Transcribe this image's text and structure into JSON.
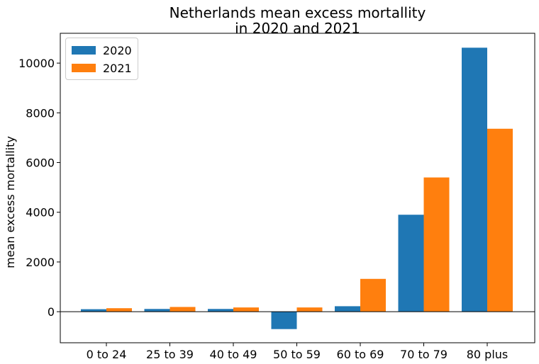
{
  "chart_data": {
    "type": "bar",
    "title_lines": [
      "Netherlands mean excess mortallity",
      "in 2020 and 2021"
    ],
    "xlabel": "",
    "ylabel": "mean excess mortallity",
    "categories": [
      "0 to 24",
      "25 to 39",
      "40 to 49",
      "50 to 59",
      "60 to 69",
      "70 to 79",
      "80 plus"
    ],
    "series": [
      {
        "name": "2020",
        "color": "#1f77b4",
        "values": [
          100,
          110,
          110,
          -700,
          220,
          3900,
          10620
        ]
      },
      {
        "name": "2021",
        "color": "#ff7f0e",
        "values": [
          140,
          190,
          170,
          170,
          1320,
          5400,
          7360
        ]
      }
    ],
    "ylim": [
      -1250,
      11200
    ],
    "yticks": [
      0,
      2000,
      4000,
      6000,
      8000,
      10000
    ],
    "legend_position": "upper-left",
    "zero_line": true,
    "grid": false
  }
}
